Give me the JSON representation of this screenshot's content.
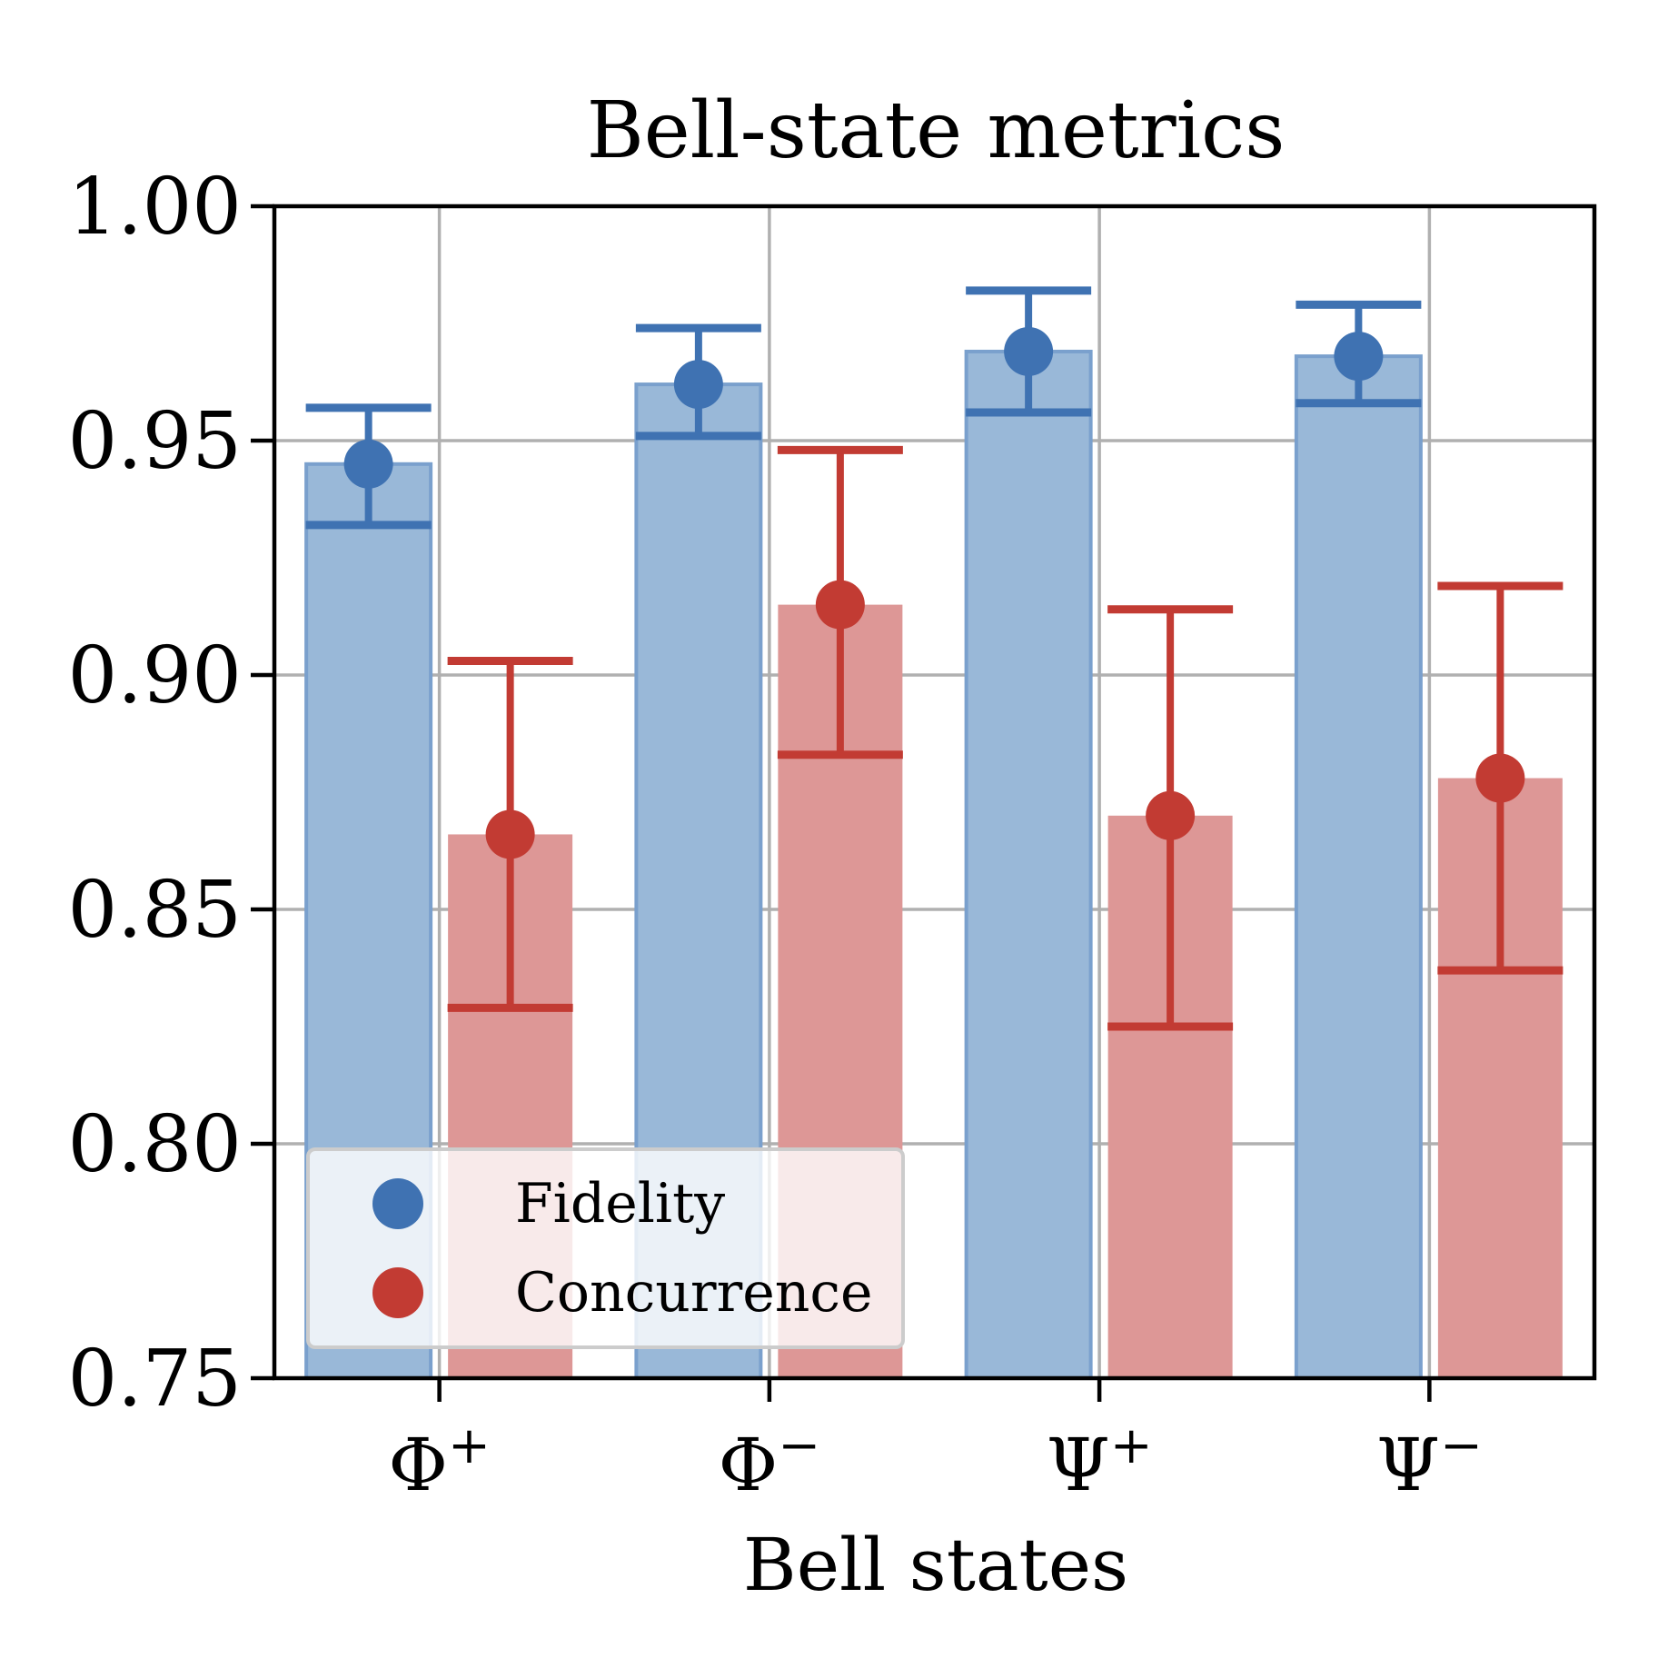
{
  "chart_data": {
    "type": "bar",
    "title": "Bell-state metrics",
    "xlabel": "Bell states",
    "ylabel": "",
    "ylim": [
      0.75,
      1.0
    ],
    "yticks": [
      "0.75",
      "0.80",
      "0.85",
      "0.90",
      "0.95",
      "1.00"
    ],
    "ytick_values": [
      0.75,
      0.8,
      0.85,
      0.9,
      0.95,
      1.0
    ],
    "categories": [
      {
        "base": "Φ",
        "sup": "+"
      },
      {
        "base": "Φ",
        "sup": "−"
      },
      {
        "base": "Ψ",
        "sup": "+"
      },
      {
        "base": "Ψ",
        "sup": "−"
      }
    ],
    "grid": true,
    "legend_position": "lower-left",
    "series": [
      {
        "name": "Fidelity",
        "bar_color": "#99b8d8",
        "marker_color": "#3f72b2",
        "values": [
          0.945,
          0.962,
          0.969,
          0.968
        ],
        "err_low": [
          0.932,
          0.951,
          0.956,
          0.958
        ],
        "err_high": [
          0.957,
          0.974,
          0.982,
          0.979
        ]
      },
      {
        "name": "Concurrence",
        "bar_color": "#dd9796",
        "marker_color": "#c23b33",
        "values": [
          0.866,
          0.915,
          0.87,
          0.878
        ],
        "err_low": [
          0.829,
          0.883,
          0.825,
          0.837
        ],
        "err_high": [
          0.903,
          0.948,
          0.914,
          0.919
        ]
      }
    ]
  }
}
